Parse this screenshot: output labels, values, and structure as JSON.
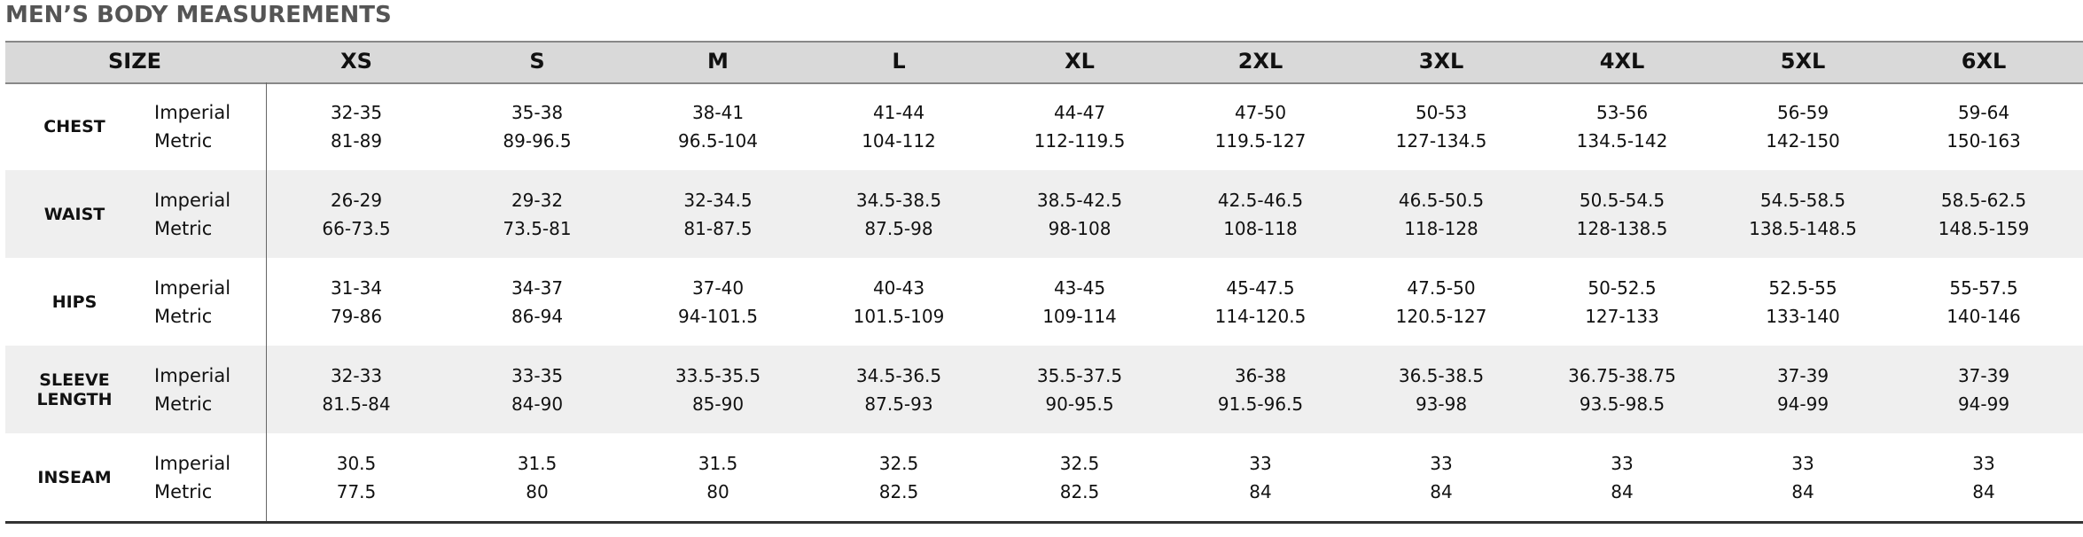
{
  "header": {
    "title": "MEN’S BODY MEASUREMENTS"
  },
  "table": {
    "size_label": "SIZE",
    "sizes": [
      "XS",
      "S",
      "M",
      "L",
      "XL",
      "2XL",
      "3XL",
      "4XL",
      "5XL",
      "6XL"
    ],
    "rows": [
      {
        "label": "CHEST",
        "units": [
          "Imperial",
          "Metric"
        ],
        "imperial": [
          "32-35",
          "35-38",
          "38-41",
          "41-44",
          "44-47",
          "47-50",
          "50-53",
          "53-56",
          "56-59",
          "59-64"
        ],
        "metric": [
          "81-89",
          "89-96.5",
          "96.5-104",
          "104-112",
          "112-119.5",
          "119.5-127",
          "127-134.5",
          "134.5-142",
          "142-150",
          "150-163"
        ]
      },
      {
        "label": "WAIST",
        "units": [
          "Imperial",
          "Metric"
        ],
        "imperial": [
          "26-29",
          "29-32",
          "32-34.5",
          "34.5-38.5",
          "38.5-42.5",
          "42.5-46.5",
          "46.5-50.5",
          "50.5-54.5",
          "54.5-58.5",
          "58.5-62.5"
        ],
        "metric": [
          "66-73.5",
          "73.5-81",
          "81-87.5",
          "87.5-98",
          "98-108",
          "108-118",
          "118-128",
          "128-138.5",
          "138.5-148.5",
          "148.5-159"
        ]
      },
      {
        "label": "HIPS",
        "units": [
          "Imperial",
          "Metric"
        ],
        "imperial": [
          "31-34",
          "34-37",
          "37-40",
          "40-43",
          "43-45",
          "45-47.5",
          "47.5-50",
          "50-52.5",
          "52.5-55",
          "55-57.5"
        ],
        "metric": [
          "79-86",
          "86-94",
          "94-101.5",
          "101.5-109",
          "109-114",
          "114-120.5",
          "120.5-127",
          "127-133",
          "133-140",
          "140-146"
        ]
      },
      {
        "label": "SLEEVE LENGTH",
        "units": [
          "Imperial",
          "Metric"
        ],
        "imperial": [
          "32-33",
          "33-35",
          "33.5-35.5",
          "34.5-36.5",
          "35.5-37.5",
          "36-38",
          "36.5-38.5",
          "36.75-38.75",
          "37-39",
          "37-39"
        ],
        "metric": [
          "81.5-84",
          "84-90",
          "85-90",
          "87.5-93",
          "90-95.5",
          "91.5-96.5",
          "93-98",
          "93.5-98.5",
          "94-99",
          "94-99"
        ]
      },
      {
        "label": "INSEAM",
        "units": [
          "Imperial",
          "Metric"
        ],
        "imperial": [
          "30.5",
          "31.5",
          "31.5",
          "32.5",
          "32.5",
          "33",
          "33",
          "33",
          "33",
          "33"
        ],
        "metric": [
          "77.5",
          "80",
          "80",
          "82.5",
          "82.5",
          "84",
          "84",
          "84",
          "84",
          "84"
        ]
      }
    ]
  }
}
